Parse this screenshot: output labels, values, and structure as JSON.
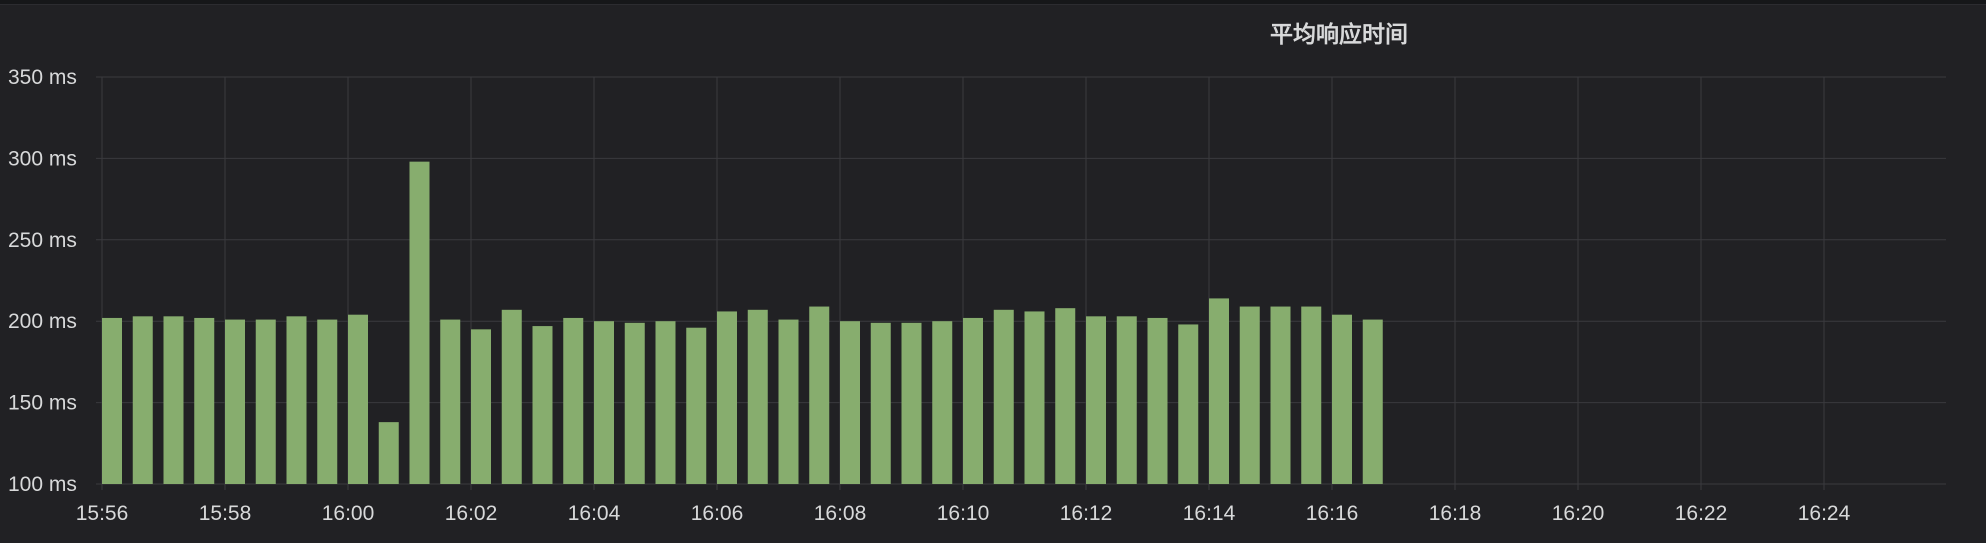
{
  "panel": {
    "title": "平均响应时间"
  },
  "colors": {
    "bar": "#87ad6e",
    "grid": "#3a3a3e",
    "background": "#212124",
    "text": "#d8d9da"
  },
  "chart_data": {
    "type": "bar",
    "title": "平均响应时间",
    "y_unit": "ms",
    "ylim": [
      100,
      350
    ],
    "y_ticks": [
      100,
      150,
      200,
      250,
      300,
      350
    ],
    "y_tick_labels": [
      "100 ms",
      "150 ms",
      "200 ms",
      "250 ms",
      "300 ms",
      "350 ms"
    ],
    "x_range": [
      "15:56",
      "16:25"
    ],
    "x_ticks": [
      "15:56",
      "15:58",
      "16:00",
      "16:02",
      "16:04",
      "16:06",
      "16:08",
      "16:10",
      "16:12",
      "16:14",
      "16:16",
      "16:18",
      "16:20",
      "16:22",
      "16:24"
    ],
    "grid": true,
    "legend": "none",
    "series": [
      {
        "x": [
          "15:56:00",
          "15:56:30",
          "15:57:00",
          "15:57:30",
          "15:58:00",
          "15:58:30",
          "15:59:00",
          "15:59:30",
          "16:00:00",
          "16:00:30",
          "16:01:00",
          "16:01:30",
          "16:02:00",
          "16:02:30",
          "16:03:00",
          "16:03:30",
          "16:04:00",
          "16:04:30",
          "16:05:00",
          "16:05:30",
          "16:06:00",
          "16:06:30",
          "16:07:00",
          "16:07:30",
          "16:08:00",
          "16:08:30",
          "16:09:00",
          "16:09:30",
          "16:10:00",
          "16:10:30",
          "16:11:00",
          "16:11:30",
          "16:12:00",
          "16:12:30",
          "16:13:00",
          "16:13:30",
          "16:14:00",
          "16:14:30",
          "16:15:00",
          "16:15:30",
          "16:16:00",
          "16:16:30"
        ],
        "values": [
          202,
          203,
          203,
          202,
          201,
          201,
          203,
          201,
          204,
          138,
          298,
          201,
          195,
          207,
          197,
          202,
          200,
          199,
          200,
          196,
          206,
          207,
          201,
          209,
          200,
          199,
          199,
          200,
          202,
          207,
          206,
          208,
          203,
          203,
          202,
          198,
          214,
          209,
          209,
          209,
          204,
          201
        ]
      }
    ]
  }
}
